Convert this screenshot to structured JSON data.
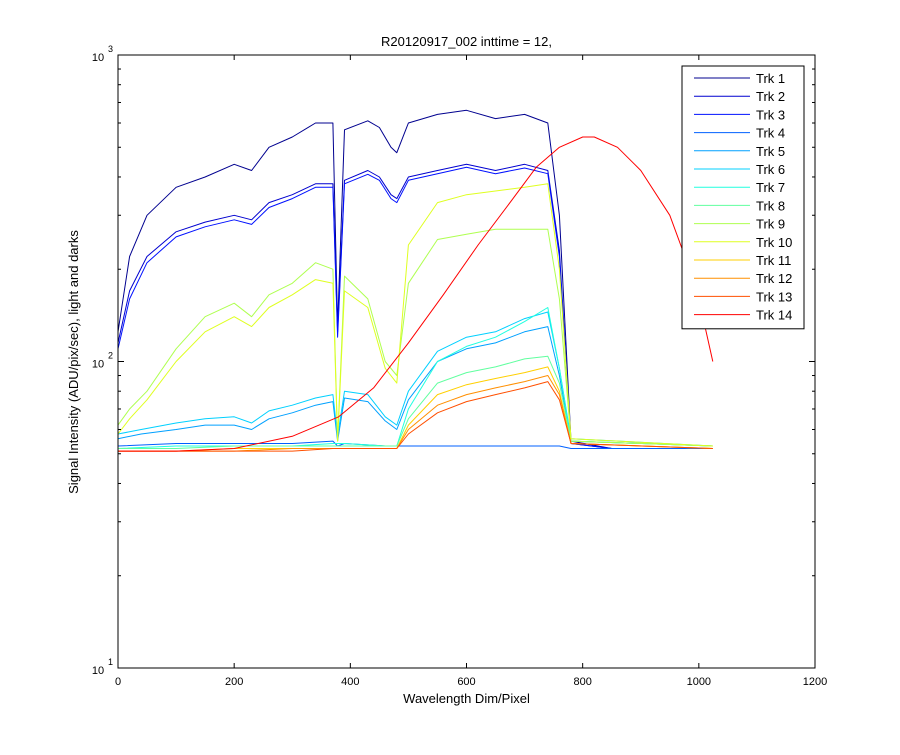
{
  "chart_data": {
    "type": "line",
    "title": "R20120917_002 inttime = 12,",
    "xlabel": "Wavelength Dim/Pixel",
    "ylabel": "Signal Intensity (ADU/pix/sec), light and darks",
    "xlim": [
      0,
      1200
    ],
    "ylim": [
      10,
      1000
    ],
    "yscale": "log",
    "x_ticks": [
      0,
      200,
      400,
      600,
      800,
      1000,
      1200
    ],
    "x_tick_labels": [
      "0",
      "200",
      "400",
      "600",
      "800",
      "1000",
      "1200"
    ],
    "y_ticks": [
      {
        "value": 10,
        "base": "10",
        "exp": "1"
      },
      {
        "value": 100,
        "base": "10",
        "exp": "2"
      },
      {
        "value": 1000,
        "base": "10",
        "exp": "3"
      }
    ],
    "grid": false,
    "legend_position": "top-right",
    "series": [
      {
        "name": "Trk 1",
        "color": "#00008F",
        "x": [
          0,
          20,
          50,
          100,
          150,
          200,
          230,
          260,
          300,
          340,
          370,
          378,
          390,
          430,
          450,
          470,
          480,
          500,
          550,
          600,
          650,
          700,
          740,
          760,
          780,
          850,
          900,
          1000,
          1024
        ],
        "y": [
          125,
          220,
          300,
          370,
          400,
          440,
          420,
          500,
          540,
          600,
          600,
          130,
          570,
          610,
          580,
          500,
          480,
          600,
          640,
          660,
          620,
          640,
          600,
          300,
          55,
          52,
          52,
          52,
          52
        ]
      },
      {
        "name": "Trk 2",
        "color": "#0000CF",
        "x": [
          0,
          20,
          50,
          100,
          150,
          200,
          230,
          260,
          300,
          340,
          370,
          378,
          390,
          430,
          450,
          470,
          480,
          500,
          550,
          600,
          650,
          700,
          740,
          760,
          780,
          850,
          900,
          1000,
          1024
        ],
        "y": [
          115,
          170,
          220,
          265,
          285,
          300,
          290,
          330,
          350,
          380,
          380,
          125,
          390,
          420,
          400,
          350,
          340,
          400,
          420,
          440,
          420,
          440,
          420,
          230,
          54,
          52,
          52,
          52,
          52
        ]
      },
      {
        "name": "Trk 3",
        "color": "#0010FF",
        "x": [
          0,
          20,
          50,
          100,
          150,
          200,
          230,
          260,
          300,
          340,
          370,
          378,
          390,
          430,
          450,
          470,
          480,
          500,
          550,
          600,
          650,
          700,
          740,
          760,
          780,
          850,
          900,
          1000,
          1024
        ],
        "y": [
          110,
          160,
          210,
          255,
          275,
          290,
          280,
          318,
          340,
          370,
          370,
          120,
          380,
          408,
          390,
          340,
          330,
          390,
          410,
          430,
          410,
          428,
          410,
          220,
          54,
          52,
          52,
          52,
          52
        ]
      },
      {
        "name": "Trk 4",
        "color": "#0060FF",
        "x": [
          0,
          100,
          200,
          300,
          370,
          378,
          390,
          460,
          480,
          520,
          600,
          700,
          740,
          760,
          780,
          1024
        ],
        "y": [
          53,
          54,
          54,
          54,
          55,
          53,
          54,
          53,
          53,
          53,
          53,
          53,
          53,
          53,
          52,
          52
        ]
      },
      {
        "name": "Trk 5",
        "color": "#00A0FF",
        "x": [
          0,
          40,
          100,
          150,
          200,
          230,
          260,
          300,
          340,
          370,
          378,
          390,
          430,
          460,
          480,
          500,
          550,
          600,
          650,
          700,
          740,
          760,
          780,
          1024
        ],
        "y": [
          56,
          58,
          60,
          62,
          62,
          60,
          65,
          68,
          72,
          74,
          55,
          76,
          74,
          64,
          60,
          75,
          100,
          110,
          115,
          125,
          130,
          90,
          55,
          53
        ]
      },
      {
        "name": "Trk 6",
        "color": "#00D0FF",
        "x": [
          0,
          40,
          100,
          150,
          200,
          230,
          260,
          300,
          340,
          370,
          378,
          390,
          430,
          460,
          480,
          500,
          550,
          600,
          650,
          700,
          740,
          760,
          780,
          1024
        ],
        "y": [
          58,
          60,
          63,
          65,
          66,
          63,
          69,
          72,
          76,
          78,
          57,
          80,
          78,
          66,
          62,
          80,
          108,
          120,
          125,
          138,
          145,
          95,
          56,
          53
        ]
      },
      {
        "name": "Trk 7",
        "color": "#20FFDF",
        "x": [
          0,
          100,
          200,
          300,
          370,
          390,
          460,
          480,
          500,
          550,
          600,
          650,
          700,
          740,
          760,
          780,
          1024
        ],
        "y": [
          52,
          53,
          53,
          53,
          54,
          54,
          53,
          53,
          70,
          100,
          112,
          120,
          135,
          150,
          95,
          55,
          53
        ]
      },
      {
        "name": "Trk 8",
        "color": "#60FF9F",
        "x": [
          0,
          100,
          200,
          300,
          370,
          390,
          460,
          480,
          500,
          550,
          600,
          650,
          700,
          740,
          760,
          780,
          1024
        ],
        "y": [
          52,
          52,
          53,
          53,
          53,
          53,
          53,
          53,
          65,
          85,
          92,
          96,
          102,
          104,
          85,
          55,
          53
        ]
      },
      {
        "name": "Trk 9",
        "color": "#AFFF50",
        "x": [
          0,
          20,
          50,
          100,
          150,
          200,
          230,
          260,
          300,
          340,
          370,
          378,
          390,
          430,
          460,
          480,
          500,
          550,
          600,
          650,
          700,
          740,
          760,
          780,
          1024
        ],
        "y": [
          62,
          70,
          80,
          110,
          140,
          155,
          140,
          165,
          180,
          210,
          200,
          55,
          190,
          160,
          100,
          90,
          180,
          250,
          260,
          270,
          270,
          270,
          160,
          55,
          53
        ]
      },
      {
        "name": "Trk 10",
        "color": "#DFFF20",
        "x": [
          0,
          20,
          50,
          100,
          150,
          200,
          230,
          260,
          300,
          340,
          370,
          378,
          390,
          430,
          460,
          480,
          500,
          550,
          600,
          650,
          700,
          740,
          760,
          780,
          1024
        ],
        "y": [
          58,
          65,
          75,
          100,
          125,
          140,
          130,
          150,
          165,
          185,
          180,
          55,
          170,
          150,
          95,
          85,
          240,
          330,
          350,
          360,
          370,
          380,
          200,
          56,
          53
        ]
      },
      {
        "name": "Trk 11",
        "color": "#FFCF00",
        "x": [
          0,
          100,
          200,
          300,
          370,
          390,
          460,
          480,
          500,
          550,
          600,
          650,
          700,
          740,
          760,
          780,
          1024
        ],
        "y": [
          51,
          51,
          52,
          52,
          52,
          52,
          52,
          52,
          62,
          78,
          84,
          88,
          92,
          96,
          80,
          54,
          52
        ]
      },
      {
        "name": "Trk 12",
        "color": "#FF8F00",
        "x": [
          0,
          100,
          200,
          300,
          370,
          390,
          460,
          480,
          500,
          550,
          600,
          650,
          700,
          740,
          760,
          780,
          1024
        ],
        "y": [
          51,
          51,
          51,
          52,
          52,
          52,
          52,
          52,
          60,
          72,
          78,
          82,
          86,
          90,
          78,
          54,
          52
        ]
      },
      {
        "name": "Trk 13",
        "color": "#FF4F00",
        "x": [
          0,
          100,
          200,
          300,
          370,
          390,
          460,
          480,
          500,
          550,
          600,
          650,
          700,
          740,
          760,
          780,
          1024
        ],
        "y": [
          51,
          51,
          51,
          51,
          52,
          52,
          52,
          52,
          58,
          68,
          74,
          78,
          82,
          86,
          75,
          54,
          52
        ]
      },
      {
        "name": "Trk 14",
        "color": "#FF0000",
        "x": [
          0,
          100,
          200,
          300,
          380,
          440,
          500,
          560,
          620,
          680,
          720,
          760,
          800,
          820,
          860,
          900,
          950,
          980,
          1000,
          1024
        ],
        "y": [
          51,
          51,
          52,
          57,
          66,
          82,
          115,
          165,
          240,
          340,
          430,
          500,
          540,
          540,
          500,
          420,
          300,
          210,
          160,
          100
        ]
      }
    ]
  }
}
